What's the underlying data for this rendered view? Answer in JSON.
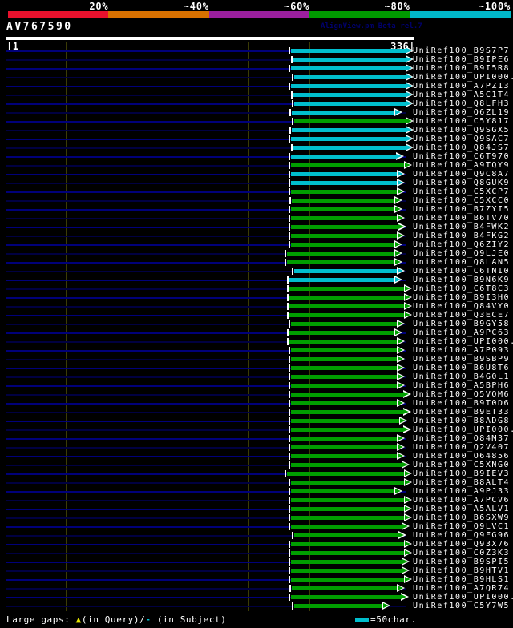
{
  "palette": {
    "background": "#000000",
    "text": "#ffffff",
    "credit_text": "#00006e",
    "cyan_hit": "#00becd",
    "green_hit": "#009e00",
    "navy_bright": "#00007a",
    "navy_dim": "#000042",
    "gridline": "#3b3b06",
    "gap_query_marker": "#e8e800",
    "gap_subject_marker": "#00becd",
    "scale_red": "#e8112d",
    "scale_orange": "#d97100",
    "scale_purple": "#9b1f9e",
    "scale_green": "#009b00",
    "scale_cyan": "#00b7c9"
  },
  "header": {
    "query_name": "AV767590",
    "app_credit": "AlignView.pm Beta rel.7",
    "ruler": {
      "start_label": "|1",
      "end_label": "336|"
    },
    "scale_segments": [
      {
        "label": "20%",
        "color": "#e8112d"
      },
      {
        "label": "~40%",
        "color": "#d97100"
      },
      {
        "label": "~60%",
        "color": "#9b1f9e"
      },
      {
        "label": "~80%",
        "color": "#009b00"
      },
      {
        "label": "~100%",
        "color": "#00b7c9"
      }
    ]
  },
  "footer": {
    "gaps_prefix": "Large gaps: ",
    "gap_query_marker": "▲",
    "gaps_mid": "(in Query)/",
    "gap_subject_marker": "-",
    "gaps_suffix": " (in Subject)",
    "bar_legend_label": "=50char."
  },
  "chart_data": {
    "type": "alignment-hit-map",
    "title": "BLAST-style hit overview against query AV767590",
    "query": "AV767590",
    "query_length": 336,
    "xlim": [
      1,
      336
    ],
    "gridline_residues": [
      50,
      100,
      150,
      200,
      250,
      300
    ],
    "identity_bins": [
      "20%",
      "~40%",
      "~60%",
      "~80%",
      "~100%"
    ],
    "bin_colors": {
      "cyan": "~100%",
      "green": "~80%"
    },
    "hits": [
      {
        "id": "UniRef100_B9S7P7",
        "color": "cyan",
        "bin": "~100%",
        "q_start": 235,
        "q_end": 336
      },
      {
        "id": "UniRef100_B9IPE6",
        "color": "cyan",
        "bin": "~100%",
        "q_start": 237,
        "q_end": 336
      },
      {
        "id": "UniRef100_B9I5R8",
        "color": "cyan",
        "bin": "~100%",
        "q_start": 235,
        "q_end": 336
      },
      {
        "id": "UniRef100_UPI000..",
        "color": "cyan",
        "bin": "~100%",
        "q_start": 238,
        "q_end": 336
      },
      {
        "id": "UniRef100_A7PZ13",
        "color": "cyan",
        "bin": "~100%",
        "q_start": 235,
        "q_end": 336
      },
      {
        "id": "UniRef100_A5C1T4",
        "color": "cyan",
        "bin": "~100%",
        "q_start": 237,
        "q_end": 336
      },
      {
        "id": "UniRef100_Q8LFH3",
        "color": "cyan",
        "bin": "~100%",
        "q_start": 238,
        "q_end": 336
      },
      {
        "id": "UniRef100_Q6ZL19",
        "color": "cyan",
        "bin": "~100%",
        "q_start": 236,
        "q_end": 327
      },
      {
        "id": "UniRef100_C5Y817",
        "color": "green",
        "bin": "~80%",
        "q_start": 238,
        "q_end": 336
      },
      {
        "id": "UniRef100_Q9SGX5",
        "color": "cyan",
        "bin": "~100%",
        "q_start": 236,
        "q_end": 336
      },
      {
        "id": "UniRef100_Q9SAC7",
        "color": "cyan",
        "bin": "~100%",
        "q_start": 235,
        "q_end": 336
      },
      {
        "id": "UniRef100_Q84JS7",
        "color": "cyan",
        "bin": "~100%",
        "q_start": 237,
        "q_end": 336
      },
      {
        "id": "UniRef100_C6T970",
        "color": "cyan",
        "bin": "~100%",
        "q_start": 235,
        "q_end": 328
      },
      {
        "id": "UniRef100_A9TQY9",
        "color": "green",
        "bin": "~80%",
        "q_start": 235,
        "q_end": 335
      },
      {
        "id": "UniRef100_Q9C8A7",
        "color": "cyan",
        "bin": "~100%",
        "q_start": 235,
        "q_end": 329
      },
      {
        "id": "UniRef100_Q8GUK9",
        "color": "cyan",
        "bin": "~100%",
        "q_start": 235,
        "q_end": 329
      },
      {
        "id": "UniRef100_C5XCP7",
        "color": "green",
        "bin": "~80%",
        "q_start": 235,
        "q_end": 329
      },
      {
        "id": "UniRef100_C5XCC0",
        "color": "green",
        "bin": "~80%",
        "q_start": 236,
        "q_end": 327
      },
      {
        "id": "UniRef100_B7ZYI5",
        "color": "green",
        "bin": "~80%",
        "q_start": 235,
        "q_end": 327
      },
      {
        "id": "UniRef100_B6TV70",
        "color": "green",
        "bin": "~80%",
        "q_start": 235,
        "q_end": 329
      },
      {
        "id": "UniRef100_B4FWK2",
        "color": "green",
        "bin": "~80%",
        "q_start": 235,
        "q_end": 330
      },
      {
        "id": "UniRef100_B4FKG2",
        "color": "green",
        "bin": "~80%",
        "q_start": 235,
        "q_end": 329
      },
      {
        "id": "UniRef100_Q6ZIY2",
        "color": "green",
        "bin": "~80%",
        "q_start": 235,
        "q_end": 327
      },
      {
        "id": "UniRef100_Q9LJE0",
        "color": "green",
        "bin": "~80%",
        "q_start": 232,
        "q_end": 327
      },
      {
        "id": "UniRef100_Q8LAN5",
        "color": "green",
        "bin": "~80%",
        "q_start": 232,
        "q_end": 327
      },
      {
        "id": "UniRef100_C6TNI0",
        "color": "cyan",
        "bin": "~100%",
        "q_start": 238,
        "q_end": 329
      },
      {
        "id": "UniRef100_B9N6K9",
        "color": "cyan",
        "bin": "~100%",
        "q_start": 234,
        "q_end": 327
      },
      {
        "id": "UniRef100_C6T8C3",
        "color": "green",
        "bin": "~80%",
        "q_start": 234,
        "q_end": 335
      },
      {
        "id": "UniRef100_B9I3H0",
        "color": "green",
        "bin": "~80%",
        "q_start": 234,
        "q_end": 335
      },
      {
        "id": "UniRef100_Q84VY0",
        "color": "green",
        "bin": "~80%",
        "q_start": 234,
        "q_end": 335
      },
      {
        "id": "UniRef100_Q3ECE7",
        "color": "green",
        "bin": "~80%",
        "q_start": 234,
        "q_end": 335
      },
      {
        "id": "UniRef100_B9GY58",
        "color": "green",
        "bin": "~80%",
        "q_start": 235,
        "q_end": 329
      },
      {
        "id": "UniRef100_A9PC63",
        "color": "green",
        "bin": "~80%",
        "q_start": 234,
        "q_end": 327
      },
      {
        "id": "UniRef100_UPI000..",
        "color": "green",
        "bin": "~80%",
        "q_start": 234,
        "q_end": 329
      },
      {
        "id": "UniRef100_A7P093",
        "color": "green",
        "bin": "~80%",
        "q_start": 235,
        "q_end": 329
      },
      {
        "id": "UniRef100_B9SBP9",
        "color": "green",
        "bin": "~80%",
        "q_start": 235,
        "q_end": 329
      },
      {
        "id": "UniRef100_B6U8T6",
        "color": "green",
        "bin": "~80%",
        "q_start": 235,
        "q_end": 329
      },
      {
        "id": "UniRef100_B4G0L1",
        "color": "green",
        "bin": "~80%",
        "q_start": 235,
        "q_end": 329
      },
      {
        "id": "UniRef100_A5BPH6",
        "color": "green",
        "bin": "~80%",
        "q_start": 235,
        "q_end": 329
      },
      {
        "id": "UniRef100_Q5VQM6",
        "color": "green",
        "bin": "~80%",
        "q_start": 235,
        "q_end": 334
      },
      {
        "id": "UniRef100_B9T0D6",
        "color": "green",
        "bin": "~80%",
        "q_start": 235,
        "q_end": 329
      },
      {
        "id": "UniRef100_B9ET33",
        "color": "green",
        "bin": "~80%",
        "q_start": 235,
        "q_end": 334
      },
      {
        "id": "UniRef100_B8ADG8",
        "color": "green",
        "bin": "~80%",
        "q_start": 235,
        "q_end": 331
      },
      {
        "id": "UniRef100_UPI000..",
        "color": "green",
        "bin": "~80%",
        "q_start": 235,
        "q_end": 334
      },
      {
        "id": "UniRef100_Q84M37",
        "color": "green",
        "bin": "~80%",
        "q_start": 235,
        "q_end": 329
      },
      {
        "id": "UniRef100_Q2V407",
        "color": "green",
        "bin": "~80%",
        "q_start": 235,
        "q_end": 329
      },
      {
        "id": "UniRef100_O64856",
        "color": "green",
        "bin": "~80%",
        "q_start": 235,
        "q_end": 329
      },
      {
        "id": "UniRef100_C5XNG0",
        "color": "green",
        "bin": "~80%",
        "q_start": 235,
        "q_end": 333
      },
      {
        "id": "UniRef100_B9IEV3",
        "color": "green",
        "bin": "~80%",
        "q_start": 232,
        "q_end": 335
      },
      {
        "id": "UniRef100_B8ALT4",
        "color": "green",
        "bin": "~80%",
        "q_start": 235,
        "q_end": 335
      },
      {
        "id": "UniRef100_A9PJ33",
        "color": "green",
        "bin": "~80%",
        "q_start": 235,
        "q_end": 327
      },
      {
        "id": "UniRef100_A7PCV6",
        "color": "green",
        "bin": "~80%",
        "q_start": 235,
        "q_end": 335
      },
      {
        "id": "UniRef100_A5ALV1",
        "color": "green",
        "bin": "~80%",
        "q_start": 235,
        "q_end": 335
      },
      {
        "id": "UniRef100_B6SXW9",
        "color": "green",
        "bin": "~80%",
        "q_start": 235,
        "q_end": 335
      },
      {
        "id": "UniRef100_Q9LVC1",
        "color": "green",
        "bin": "~80%",
        "q_start": 235,
        "q_end": 333
      },
      {
        "id": "UniRef100_Q9FG96",
        "color": "green",
        "bin": "~80%",
        "q_start": 238,
        "q_end": 330
      },
      {
        "id": "UniRef100_Q93X76",
        "color": "green",
        "bin": "~80%",
        "q_start": 235,
        "q_end": 335
      },
      {
        "id": "UniRef100_C0Z3K3",
        "color": "green",
        "bin": "~80%",
        "q_start": 235,
        "q_end": 335
      },
      {
        "id": "UniRef100_B9SPI5",
        "color": "green",
        "bin": "~80%",
        "q_start": 235,
        "q_end": 333
      },
      {
        "id": "UniRef100_B9HTV1",
        "color": "green",
        "bin": "~80%",
        "q_start": 235,
        "q_end": 333
      },
      {
        "id": "UniRef100_B9HLS1",
        "color": "green",
        "bin": "~80%",
        "q_start": 235,
        "q_end": 335
      },
      {
        "id": "UniRef100_A7QR74",
        "color": "green",
        "bin": "~80%",
        "q_start": 236,
        "q_end": 329
      },
      {
        "id": "UniRef100_UPI000..",
        "color": "green",
        "bin": "~80%",
        "q_start": 235,
        "q_end": 332
      },
      {
        "id": "UniRef100_C5Y7W5",
        "color": "green",
        "bin": "~80%",
        "q_start": 238,
        "q_end": 317
      }
    ]
  }
}
